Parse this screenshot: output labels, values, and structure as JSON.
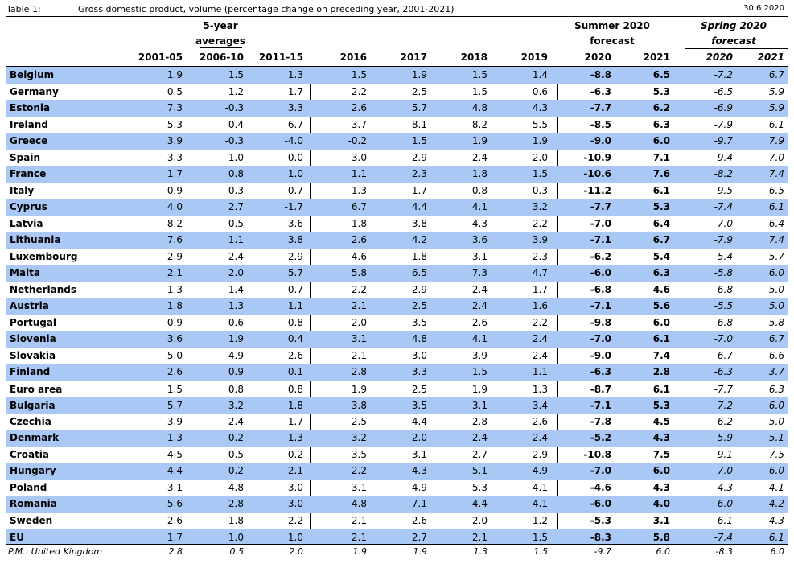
{
  "header": {
    "table_no": "Table 1:",
    "title": "Gross domestic product, volume (percentage change on preceding year, 2001-2021)",
    "date": "30.6.2020"
  },
  "groups": {
    "five_year_1": "5-year",
    "five_year_2": "averages",
    "summer_1": "Summer 2020",
    "summer_2": "forecast",
    "spring_1": "Spring 2020",
    "spring_2": "forecast"
  },
  "columns": [
    "2001-05",
    "2006-10",
    "2011-15",
    "2016",
    "2017",
    "2018",
    "2019",
    "2020",
    "2021",
    "2020",
    "2021"
  ],
  "rows": [
    {
      "name": "Belgium",
      "v": [
        "1.9",
        "1.5",
        "1.3",
        "1.5",
        "1.9",
        "1.5",
        "1.4",
        "-8.8",
        "6.5",
        "-7.2",
        "6.7"
      ]
    },
    {
      "name": "Germany",
      "v": [
        "0.5",
        "1.2",
        "1.7",
        "2.2",
        "2.5",
        "1.5",
        "0.6",
        "-6.3",
        "5.3",
        "-6.5",
        "5.9"
      ]
    },
    {
      "name": "Estonia",
      "v": [
        "7.3",
        "-0.3",
        "3.3",
        "2.6",
        "5.7",
        "4.8",
        "4.3",
        "-7.7",
        "6.2",
        "-6.9",
        "5.9"
      ]
    },
    {
      "name": "Ireland",
      "v": [
        "5.3",
        "0.4",
        "6.7",
        "3.7",
        "8.1",
        "8.2",
        "5.5",
        "-8.5",
        "6.3",
        "-7.9",
        "6.1"
      ]
    },
    {
      "name": "Greece",
      "v": [
        "3.9",
        "-0.3",
        "-4.0",
        "-0.2",
        "1.5",
        "1.9",
        "1.9",
        "-9.0",
        "6.0",
        "-9.7",
        "7.9"
      ]
    },
    {
      "name": "Spain",
      "v": [
        "3.3",
        "1.0",
        "0.0",
        "3.0",
        "2.9",
        "2.4",
        "2.0",
        "-10.9",
        "7.1",
        "-9.4",
        "7.0"
      ]
    },
    {
      "name": "France",
      "v": [
        "1.7",
        "0.8",
        "1.0",
        "1.1",
        "2.3",
        "1.8",
        "1.5",
        "-10.6",
        "7.6",
        "-8.2",
        "7.4"
      ]
    },
    {
      "name": "Italy",
      "v": [
        "0.9",
        "-0.3",
        "-0.7",
        "1.3",
        "1.7",
        "0.8",
        "0.3",
        "-11.2",
        "6.1",
        "-9.5",
        "6.5"
      ]
    },
    {
      "name": "Cyprus",
      "v": [
        "4.0",
        "2.7",
        "-1.7",
        "6.7",
        "4.4",
        "4.1",
        "3.2",
        "-7.7",
        "5.3",
        "-7.4",
        "6.1"
      ]
    },
    {
      "name": "Latvia",
      "v": [
        "8.2",
        "-0.5",
        "3.6",
        "1.8",
        "3.8",
        "4.3",
        "2.2",
        "-7.0",
        "6.4",
        "-7.0",
        "6.4"
      ]
    },
    {
      "name": "Lithuania",
      "v": [
        "7.6",
        "1.1",
        "3.8",
        "2.6",
        "4.2",
        "3.6",
        "3.9",
        "-7.1",
        "6.7",
        "-7.9",
        "7.4"
      ]
    },
    {
      "name": "Luxembourg",
      "v": [
        "2.9",
        "2.4",
        "2.9",
        "4.6",
        "1.8",
        "3.1",
        "2.3",
        "-6.2",
        "5.4",
        "-5.4",
        "5.7"
      ]
    },
    {
      "name": "Malta",
      "v": [
        "2.1",
        "2.0",
        "5.7",
        "5.8",
        "6.5",
        "7.3",
        "4.7",
        "-6.0",
        "6.3",
        "-5.8",
        "6.0"
      ]
    },
    {
      "name": "Netherlands",
      "v": [
        "1.3",
        "1.4",
        "0.7",
        "2.2",
        "2.9",
        "2.4",
        "1.7",
        "-6.8",
        "4.6",
        "-6.8",
        "5.0"
      ]
    },
    {
      "name": "Austria",
      "v": [
        "1.8",
        "1.3",
        "1.1",
        "2.1",
        "2.5",
        "2.4",
        "1.6",
        "-7.1",
        "5.6",
        "-5.5",
        "5.0"
      ]
    },
    {
      "name": "Portugal",
      "v": [
        "0.9",
        "0.6",
        "-0.8",
        "2.0",
        "3.5",
        "2.6",
        "2.2",
        "-9.8",
        "6.0",
        "-6.8",
        "5.8"
      ]
    },
    {
      "name": "Slovenia",
      "v": [
        "3.6",
        "1.9",
        "0.4",
        "3.1",
        "4.8",
        "4.1",
        "2.4",
        "-7.0",
        "6.1",
        "-7.0",
        "6.7"
      ]
    },
    {
      "name": "Slovakia",
      "v": [
        "5.0",
        "4.9",
        "2.6",
        "2.1",
        "3.0",
        "3.9",
        "2.4",
        "-9.0",
        "7.4",
        "-6.7",
        "6.6"
      ]
    },
    {
      "name": "Finland",
      "v": [
        "2.6",
        "0.9",
        "0.1",
        "2.8",
        "3.3",
        "1.5",
        "1.1",
        "-6.3",
        "2.8",
        "-6.3",
        "3.7"
      ]
    },
    {
      "name": "Euro area",
      "v": [
        "1.5",
        "0.8",
        "0.8",
        "1.9",
        "2.5",
        "1.9",
        "1.3",
        "-8.7",
        "6.1",
        "-7.7",
        "6.3"
      ]
    },
    {
      "name": "Bulgaria",
      "v": [
        "5.7",
        "3.2",
        "1.8",
        "3.8",
        "3.5",
        "3.1",
        "3.4",
        "-7.1",
        "5.3",
        "-7.2",
        "6.0"
      ]
    },
    {
      "name": "Czechia",
      "v": [
        "3.9",
        "2.4",
        "1.7",
        "2.5",
        "4.4",
        "2.8",
        "2.6",
        "-7.8",
        "4.5",
        "-6.2",
        "5.0"
      ]
    },
    {
      "name": "Denmark",
      "v": [
        "1.3",
        "0.2",
        "1.3",
        "3.2",
        "2.0",
        "2.4",
        "2.4",
        "-5.2",
        "4.3",
        "-5.9",
        "5.1"
      ]
    },
    {
      "name": "Croatia",
      "v": [
        "4.5",
        "0.5",
        "-0.2",
        "3.5",
        "3.1",
        "2.7",
        "2.9",
        "-10.8",
        "7.5",
        "-9.1",
        "7.5"
      ]
    },
    {
      "name": "Hungary",
      "v": [
        "4.4",
        "-0.2",
        "2.1",
        "2.2",
        "4.3",
        "5.1",
        "4.9",
        "-7.0",
        "6.0",
        "-7.0",
        "6.0"
      ]
    },
    {
      "name": "Poland",
      "v": [
        "3.1",
        "4.8",
        "3.0",
        "3.1",
        "4.9",
        "5.3",
        "4.1",
        "-4.6",
        "4.3",
        "-4.3",
        "4.1"
      ]
    },
    {
      "name": "Romania",
      "v": [
        "5.6",
        "2.8",
        "3.0",
        "4.8",
        "7.1",
        "4.4",
        "4.1",
        "-6.0",
        "4.0",
        "-6.0",
        "4.2"
      ]
    },
    {
      "name": "Sweden",
      "v": [
        "2.6",
        "1.8",
        "2.2",
        "2.1",
        "2.6",
        "2.0",
        "1.2",
        "-5.3",
        "3.1",
        "-6.1",
        "4.3"
      ]
    },
    {
      "name": "EU",
      "v": [
        "1.7",
        "1.0",
        "1.0",
        "2.1",
        "2.7",
        "2.1",
        "1.5",
        "-8.3",
        "5.8",
        "-7.4",
        "6.1"
      ]
    }
  ],
  "memo": {
    "name": "P.M.: United Kingdom",
    "v": [
      "2.8",
      "0.5",
      "2.0",
      "1.9",
      "1.9",
      "1.3",
      "1.5",
      "-9.7",
      "6.0",
      "-8.3",
      "6.0"
    ]
  },
  "colors": {
    "shade": "#a9c8f5",
    "line": "#000000"
  }
}
